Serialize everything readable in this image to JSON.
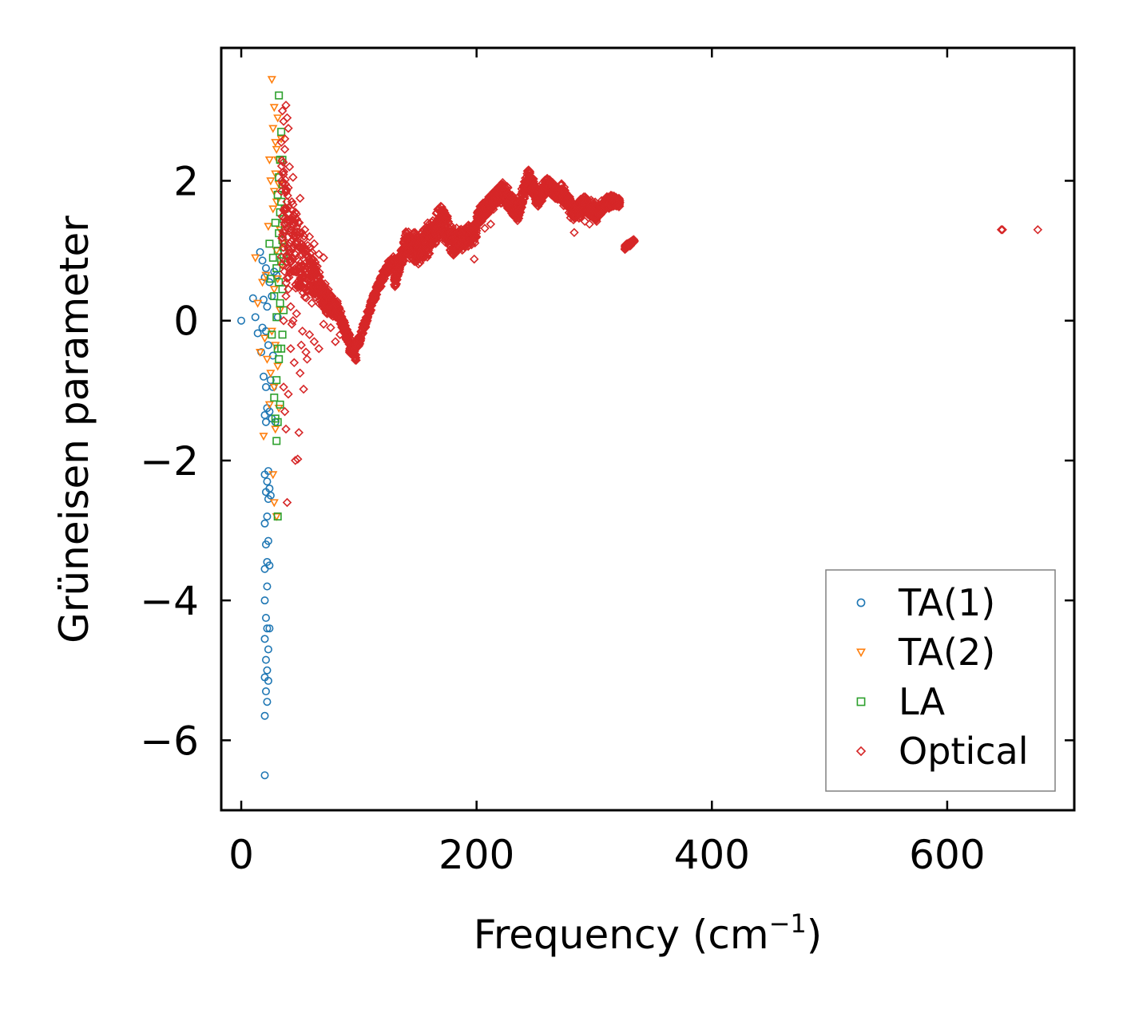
{
  "chart_data": {
    "type": "scatter",
    "title": "",
    "xlabel": "Frequency (cm",
    "xlabel_superscript": "−1",
    "xlabel_suffix": ")",
    "ylabel": "Grüneisen parameter",
    "xlim": [
      -17,
      708
    ],
    "ylim": [
      -7.0,
      3.9
    ],
    "x_ticks": [
      0,
      200,
      400,
      600
    ],
    "x_tick_labels": [
      "0",
      "200",
      "400",
      "600"
    ],
    "y_ticks": [
      -6,
      -4,
      -2,
      0,
      2
    ],
    "y_tick_labels": [
      "−6",
      "−4",
      "−2",
      "0",
      "2"
    ],
    "grid": false,
    "legend_position": "bottom-right",
    "series": [
      {
        "name": "TA(1)",
        "marker": "circle",
        "color": "#1f77b4",
        "points": [
          [
            0,
            0.0
          ],
          [
            10,
            0.32
          ],
          [
            12,
            0.05
          ],
          [
            14,
            -0.18
          ],
          [
            16,
            0.98
          ],
          [
            17,
            -0.45
          ],
          [
            18,
            -0.1
          ],
          [
            18,
            0.86
          ],
          [
            19,
            -0.8
          ],
          [
            19,
            0.3
          ],
          [
            20,
            -1.35
          ],
          [
            20,
            -2.2
          ],
          [
            20,
            -2.9
          ],
          [
            20,
            -3.55
          ],
          [
            20,
            -4.0
          ],
          [
            20,
            -4.55
          ],
          [
            20,
            -5.1
          ],
          [
            20,
            -5.65
          ],
          [
            20,
            -6.5
          ],
          [
            20,
            0.62
          ],
          [
            21,
            -0.95
          ],
          [
            21,
            -1.45
          ],
          [
            21,
            -2.45
          ],
          [
            21,
            -3.2
          ],
          [
            21,
            -4.25
          ],
          [
            21,
            -4.85
          ],
          [
            21,
            -5.3
          ],
          [
            21,
            -0.15
          ],
          [
            21,
            0.75
          ],
          [
            22,
            -1.25
          ],
          [
            22,
            -2.3
          ],
          [
            22,
            -2.8
          ],
          [
            22,
            -3.45
          ],
          [
            22,
            -3.8
          ],
          [
            22,
            -4.4
          ],
          [
            22,
            -5.0
          ],
          [
            22,
            -5.45
          ],
          [
            22,
            0.2
          ],
          [
            23,
            -2.15
          ],
          [
            23,
            -2.55
          ],
          [
            23,
            -3.15
          ],
          [
            23,
            -4.7
          ],
          [
            23,
            -5.15
          ],
          [
            23,
            -0.35
          ],
          [
            24,
            -1.3
          ],
          [
            24,
            -2.4
          ],
          [
            24,
            -3.5
          ],
          [
            24,
            -4.4
          ],
          [
            24,
            0.55
          ],
          [
            25,
            -0.85
          ],
          [
            25,
            -2.5
          ],
          [
            26,
            -1.4
          ],
          [
            26,
            0.35
          ],
          [
            27,
            -0.5
          ],
          [
            27,
            -0.95
          ],
          [
            28,
            0.7
          ],
          [
            29,
            -1.45
          ],
          [
            30,
            0.65
          ],
          [
            31,
            0.05
          ]
        ]
      },
      {
        "name": "TA(2)",
        "marker": "triangle-down",
        "color": "#ff7f0e",
        "points": [
          [
            12,
            0.9
          ],
          [
            14,
            0.25
          ],
          [
            16,
            -0.45
          ],
          [
            18,
            0.55
          ],
          [
            19,
            -1.65
          ],
          [
            20,
            -0.25
          ],
          [
            21,
            0.65
          ],
          [
            22,
            -0.55
          ],
          [
            23,
            1.35
          ],
          [
            24,
            2.3
          ],
          [
            24,
            -1.2
          ],
          [
            25,
            -0.75
          ],
          [
            25,
            2.0
          ],
          [
            26,
            3.45
          ],
          [
            26,
            -0.15
          ],
          [
            27,
            1.6
          ],
          [
            27,
            2.75
          ],
          [
            27,
            -2.2
          ],
          [
            28,
            3.05
          ],
          [
            28,
            1.85
          ],
          [
            28,
            0.45
          ],
          [
            28,
            -0.95
          ],
          [
            28,
            -2.6
          ],
          [
            29,
            2.1
          ],
          [
            29,
            2.55
          ],
          [
            29,
            -0.35
          ],
          [
            29,
            -1.55
          ],
          [
            30,
            1.7
          ],
          [
            30,
            2.45
          ],
          [
            30,
            1.0
          ],
          [
            30,
            -2.8
          ],
          [
            31,
            2.9
          ],
          [
            31,
            2.3
          ],
          [
            31,
            0.6
          ],
          [
            31,
            -0.65
          ],
          [
            32,
            1.95
          ],
          [
            32,
            -1.25
          ],
          [
            33,
            1.3
          ],
          [
            33,
            0.15
          ],
          [
            34,
            2.6
          ],
          [
            34,
            0.8
          ],
          [
            35,
            1.1
          ]
        ]
      },
      {
        "name": "LA",
        "marker": "square",
        "color": "#2ca02c",
        "points": [
          [
            24,
            1.1
          ],
          [
            25,
            0.6
          ],
          [
            26,
            -0.2
          ],
          [
            27,
            0.9
          ],
          [
            28,
            -1.1
          ],
          [
            28,
            0.35
          ],
          [
            29,
            -1.4
          ],
          [
            29,
            1.4
          ],
          [
            30,
            -1.72
          ],
          [
            30,
            0.05
          ],
          [
            30,
            0.75
          ],
          [
            30,
            -0.85
          ],
          [
            31,
            -1.45
          ],
          [
            31,
            -0.4
          ],
          [
            31,
            1.0
          ],
          [
            31,
            1.8
          ],
          [
            31,
            -2.8
          ],
          [
            32,
            3.22
          ],
          [
            32,
            0.55
          ],
          [
            32,
            1.25
          ],
          [
            32,
            -0.55
          ],
          [
            32,
            2.05
          ],
          [
            33,
            1.55
          ],
          [
            33,
            0.25
          ],
          [
            33,
            -1.2
          ],
          [
            33,
            2.3
          ],
          [
            34,
            1.7
          ],
          [
            34,
            0.85
          ],
          [
            34,
            2.7
          ],
          [
            34,
            -0.4
          ],
          [
            35,
            1.95
          ],
          [
            35,
            1.15
          ],
          [
            35,
            0.45
          ],
          [
            35,
            -0.2
          ],
          [
            35,
            2.3
          ],
          [
            36,
            1.05
          ],
          [
            36,
            1.45
          ],
          [
            36,
            0.15
          ],
          [
            36,
            0.9
          ],
          [
            37,
            1.3
          ],
          [
            37,
            1.6
          ]
        ]
      },
      {
        "name": "Optical",
        "marker": "diamond",
        "color": "#d62728",
        "curves": [
          {
            "x_start": 34,
            "x_end": 98,
            "step": 0.4,
            "segments": [
              [
                34,
                1.6
              ],
              [
                42,
                1.05
              ],
              [
                50,
                0.85
              ],
              [
                58,
                0.7
              ],
              [
                66,
                0.5
              ],
              [
                74,
                0.25
              ],
              [
                82,
                0.15
              ],
              [
                90,
                -0.2
              ],
              [
                98,
                -0.55
              ]
            ],
            "spread": [
              [
                34,
                2.2
              ],
              [
                45,
                1.4
              ],
              [
                60,
                0.7
              ],
              [
                80,
                0.3
              ],
              [
                98,
                0.15
              ]
            ]
          },
          {
            "x_start": 92,
            "x_end": 130,
            "step": 0.4,
            "segments": [
              [
                92,
                -0.45
              ],
              [
                100,
                -0.3
              ],
              [
                106,
                0.0
              ],
              [
                112,
                0.3
              ],
              [
                118,
                0.55
              ],
              [
                124,
                0.75
              ],
              [
                130,
                0.85
              ]
            ],
            "spread": [
              [
                92,
                0.15
              ],
              [
                130,
                0.2
              ]
            ]
          },
          {
            "x_start": 130,
            "x_end": 200,
            "step": 0.35,
            "segments": [
              [
                130,
                0.55
              ],
              [
                140,
                1.1
              ],
              [
                150,
                1.0
              ],
              [
                160,
                1.2
              ],
              [
                170,
                1.45
              ],
              [
                180,
                1.1
              ],
              [
                190,
                1.2
              ],
              [
                200,
                1.25
              ]
            ],
            "spread": [
              [
                130,
                0.25
              ],
              [
                150,
                0.55
              ],
              [
                170,
                0.55
              ],
              [
                200,
                0.3
              ]
            ]
          },
          {
            "x_start": 200,
            "x_end": 272,
            "step": 0.35,
            "segments": [
              [
                200,
                1.45
              ],
              [
                210,
                1.65
              ],
              [
                222,
                1.85
              ],
              [
                235,
                1.55
              ],
              [
                244,
                2.05
              ],
              [
                252,
                1.75
              ],
              [
                260,
                1.95
              ],
              [
                266,
                1.85
              ],
              [
                272,
                1.8
              ]
            ],
            "spread": [
              [
                200,
                0.25
              ],
              [
                230,
                0.35
              ],
              [
                250,
                0.3
              ],
              [
                272,
                0.2
              ]
            ]
          },
          {
            "x_start": 272,
            "x_end": 322,
            "step": 0.35,
            "segments": [
              [
                272,
                1.85
              ],
              [
                282,
                1.55
              ],
              [
                292,
                1.65
              ],
              [
                302,
                1.55
              ],
              [
                312,
                1.7
              ],
              [
                322,
                1.7
              ]
            ],
            "spread": [
              [
                272,
                0.3
              ],
              [
                300,
                0.3
              ],
              [
                322,
                0.15
              ]
            ]
          },
          {
            "x_start": 326,
            "x_end": 334,
            "step": 0.4,
            "segments": [
              [
                326,
                1.05
              ],
              [
                330,
                1.1
              ],
              [
                334,
                1.15
              ]
            ],
            "spread": [
              [
                326,
                0.08
              ],
              [
                334,
                0.08
              ]
            ]
          }
        ],
        "points": [
          [
            35,
            3.0
          ],
          [
            36,
            2.85
          ],
          [
            37,
            2.6
          ],
          [
            38,
            3.08
          ],
          [
            39,
            2.9
          ],
          [
            40,
            2.75
          ],
          [
            37,
            2.45
          ],
          [
            44,
            2.05
          ],
          [
            41,
            2.2
          ],
          [
            40,
            1.9
          ],
          [
            38,
            1.85
          ],
          [
            36,
            -0.95
          ],
          [
            37,
            -1.3
          ],
          [
            38,
            -1.55
          ],
          [
            40,
            -1.05
          ],
          [
            42,
            -0.4
          ],
          [
            45,
            -0.6
          ],
          [
            46,
            -2.0
          ],
          [
            48,
            -1.98
          ],
          [
            49,
            -1.6
          ],
          [
            50,
            -0.75
          ],
          [
            51,
            -0.35
          ],
          [
            53,
            -0.98
          ],
          [
            55,
            -0.45
          ],
          [
            39,
            -2.6
          ],
          [
            43,
            -0.05
          ],
          [
            47,
            0.1
          ],
          [
            52,
            -0.15
          ],
          [
            56,
            -0.55
          ],
          [
            58,
            -0.2
          ],
          [
            60,
            0.25
          ],
          [
            62,
            -0.3
          ],
          [
            66,
            -0.4
          ],
          [
            70,
            -0.05
          ],
          [
            76,
            -0.1
          ],
          [
            80,
            -0.3
          ],
          [
            84,
            -0.2
          ],
          [
            40,
            0.45
          ],
          [
            42,
            0.2
          ],
          [
            44,
            0.0
          ],
          [
            48,
            0.55
          ],
          [
            38,
            0.35
          ],
          [
            36,
            0.0
          ],
          [
            35,
            0.8
          ],
          [
            37,
            1.4
          ],
          [
            39,
            1.6
          ],
          [
            43,
            1.7
          ],
          [
            46,
            1.55
          ],
          [
            50,
            1.75
          ],
          [
            54,
            1.3
          ],
          [
            58,
            1.2
          ],
          [
            62,
            1.1
          ],
          [
            66,
            0.95
          ],
          [
            70,
            0.9
          ],
          [
            186,
            1.28
          ],
          [
            194,
            1.3
          ],
          [
            198,
            0.88
          ],
          [
            207,
            1.32
          ],
          [
            212,
            1.38
          ],
          [
            283,
            1.26
          ],
          [
            292,
            1.42
          ],
          [
            296,
            1.38
          ],
          [
            646,
            1.3
          ],
          [
            647,
            1.3
          ],
          [
            677,
            1.3
          ]
        ]
      }
    ]
  },
  "colors": {
    "axes": "#000000",
    "legend_border": "#808080",
    "background": "#ffffff"
  }
}
